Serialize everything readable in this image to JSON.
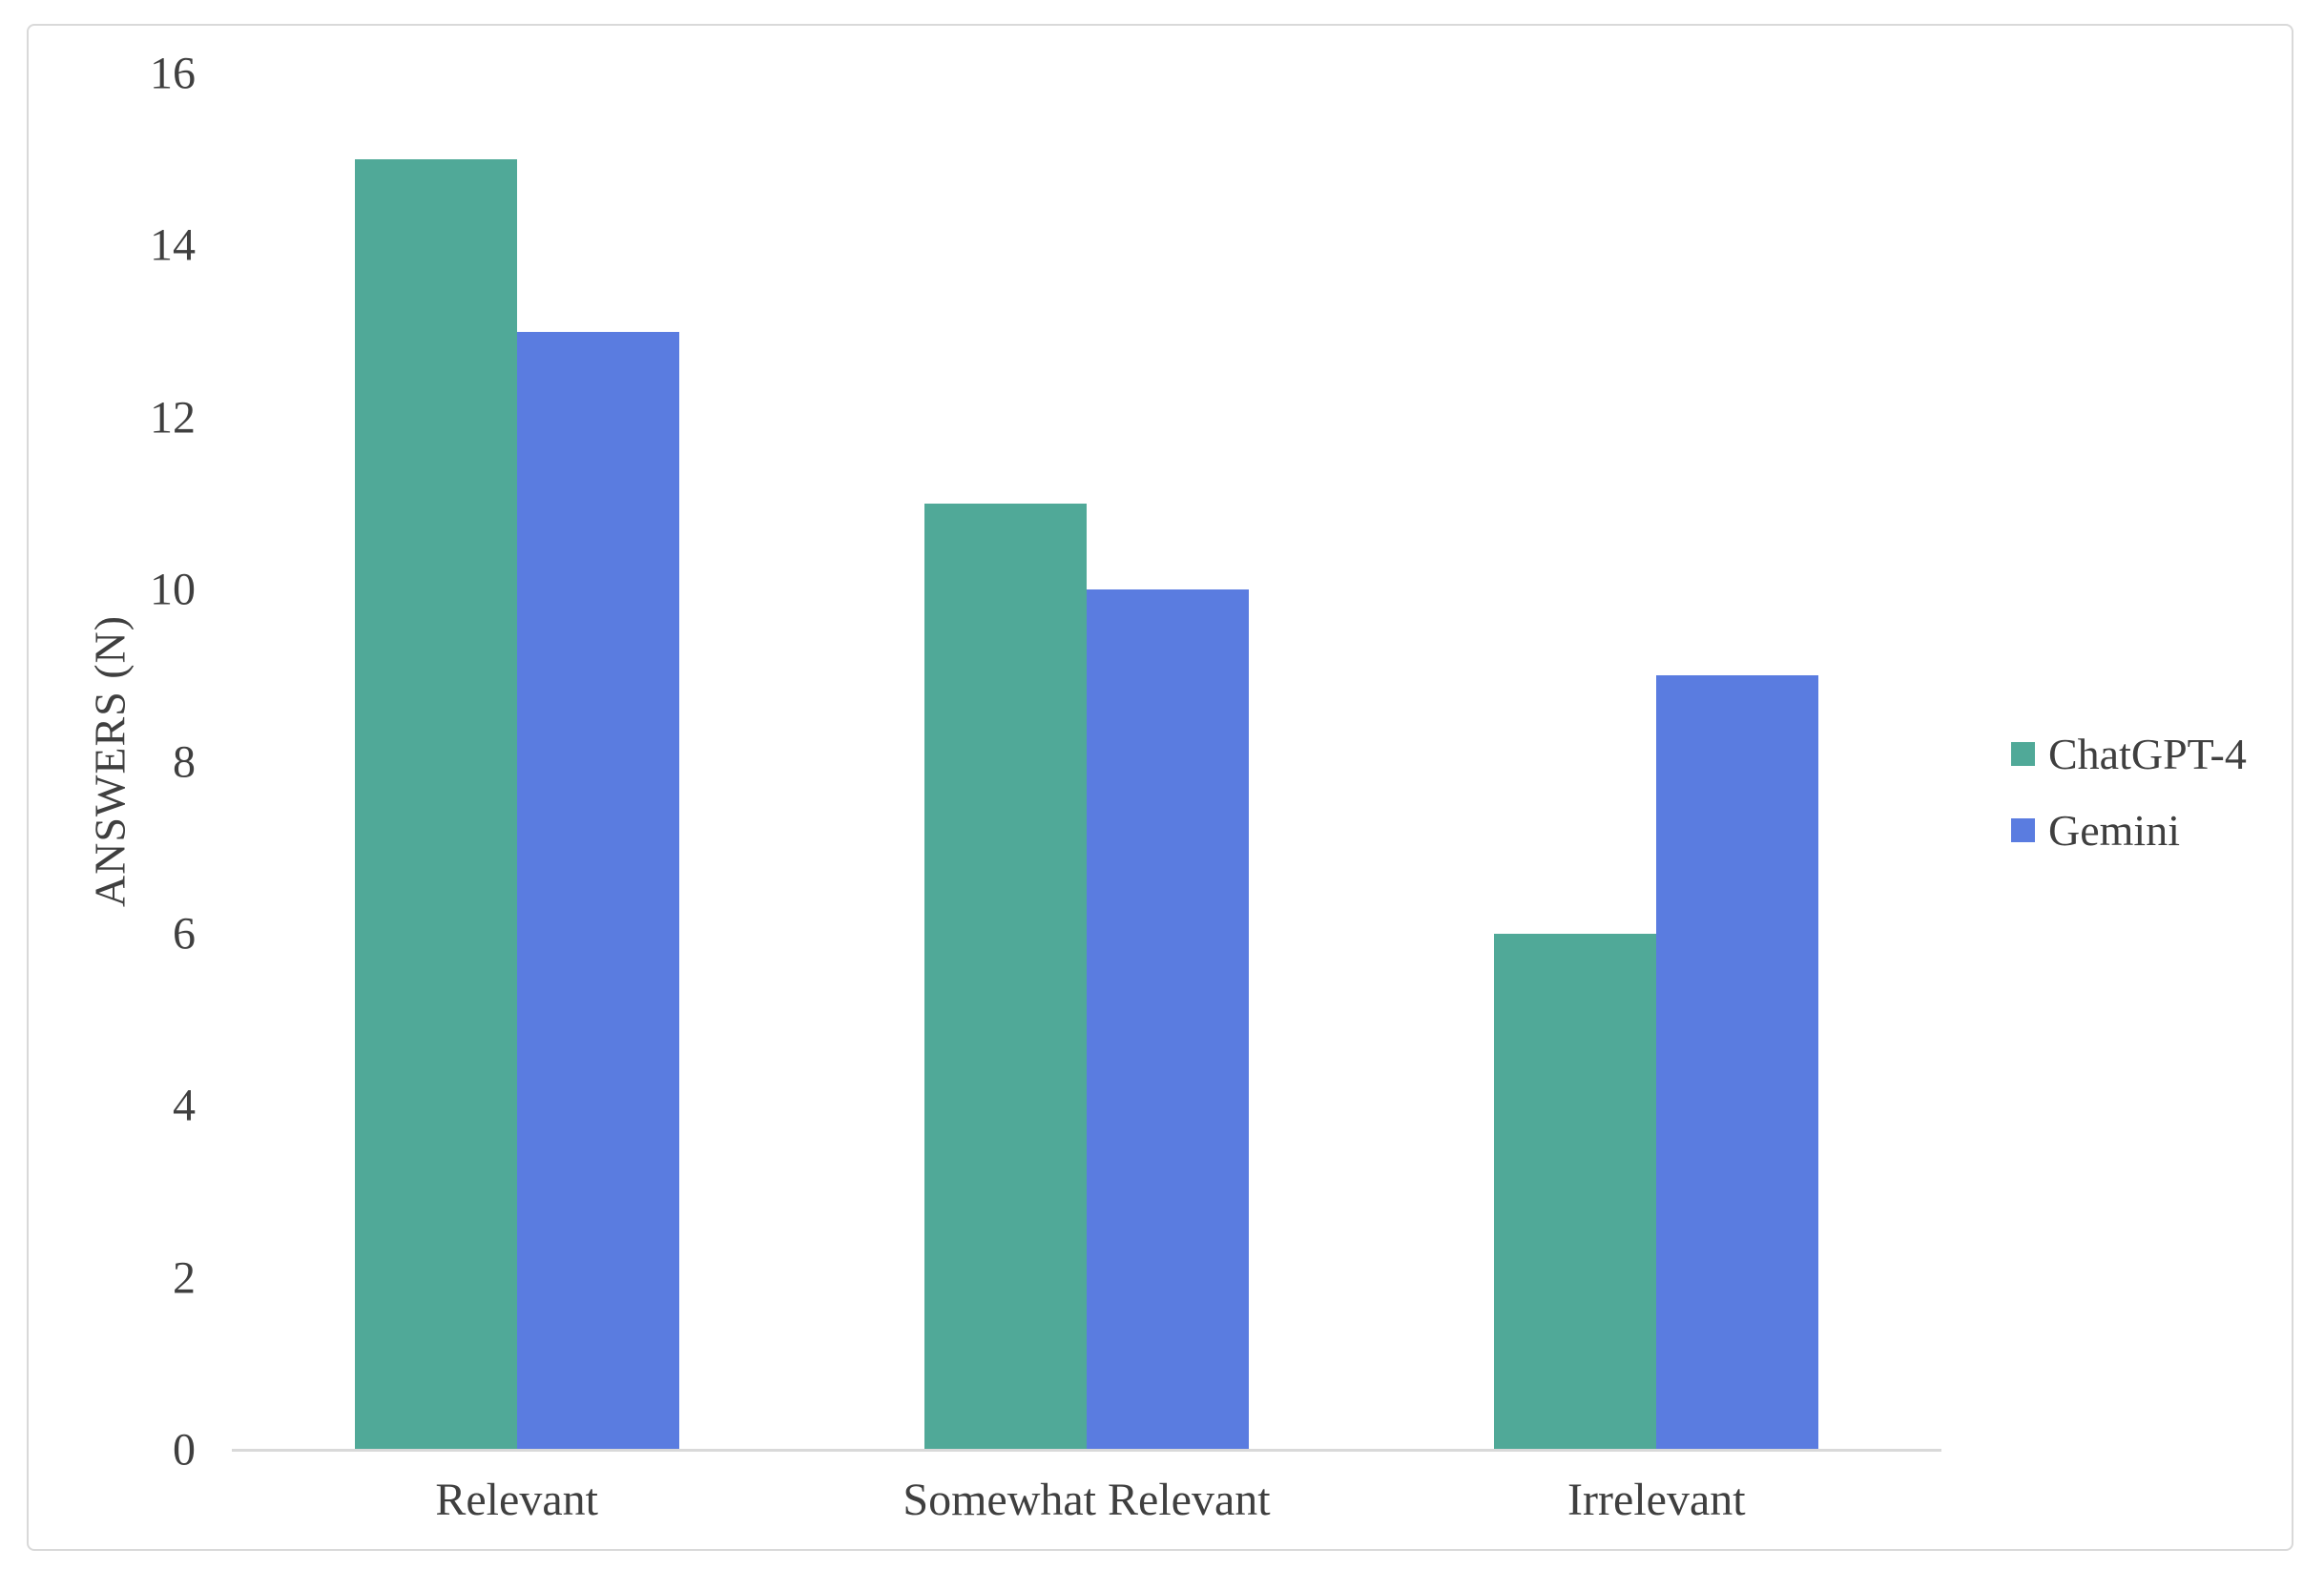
{
  "chart_data": {
    "type": "bar",
    "categories": [
      "Relevant",
      "Somewhat Relevant",
      "Irrelevant"
    ],
    "series": [
      {
        "name": "ChatGPT-4",
        "color": "#50a998",
        "values": [
          15,
          11,
          6
        ]
      },
      {
        "name": "Gemini",
        "color": "#5a7ce0",
        "values": [
          13,
          10,
          9
        ]
      }
    ],
    "title": "",
    "xlabel": "",
    "ylabel": "ANSWERS (N)",
    "ylim": [
      0,
      16
    ],
    "yticks": [
      0,
      2,
      4,
      6,
      8,
      10,
      12,
      14,
      16
    ],
    "grid": false,
    "legend_position": "right"
  },
  "colors": {
    "axis_line": "#d9d9d9",
    "frame_border": "#d9d9d9",
    "text": "#3f3f3f",
    "background": "#ffffff"
  }
}
